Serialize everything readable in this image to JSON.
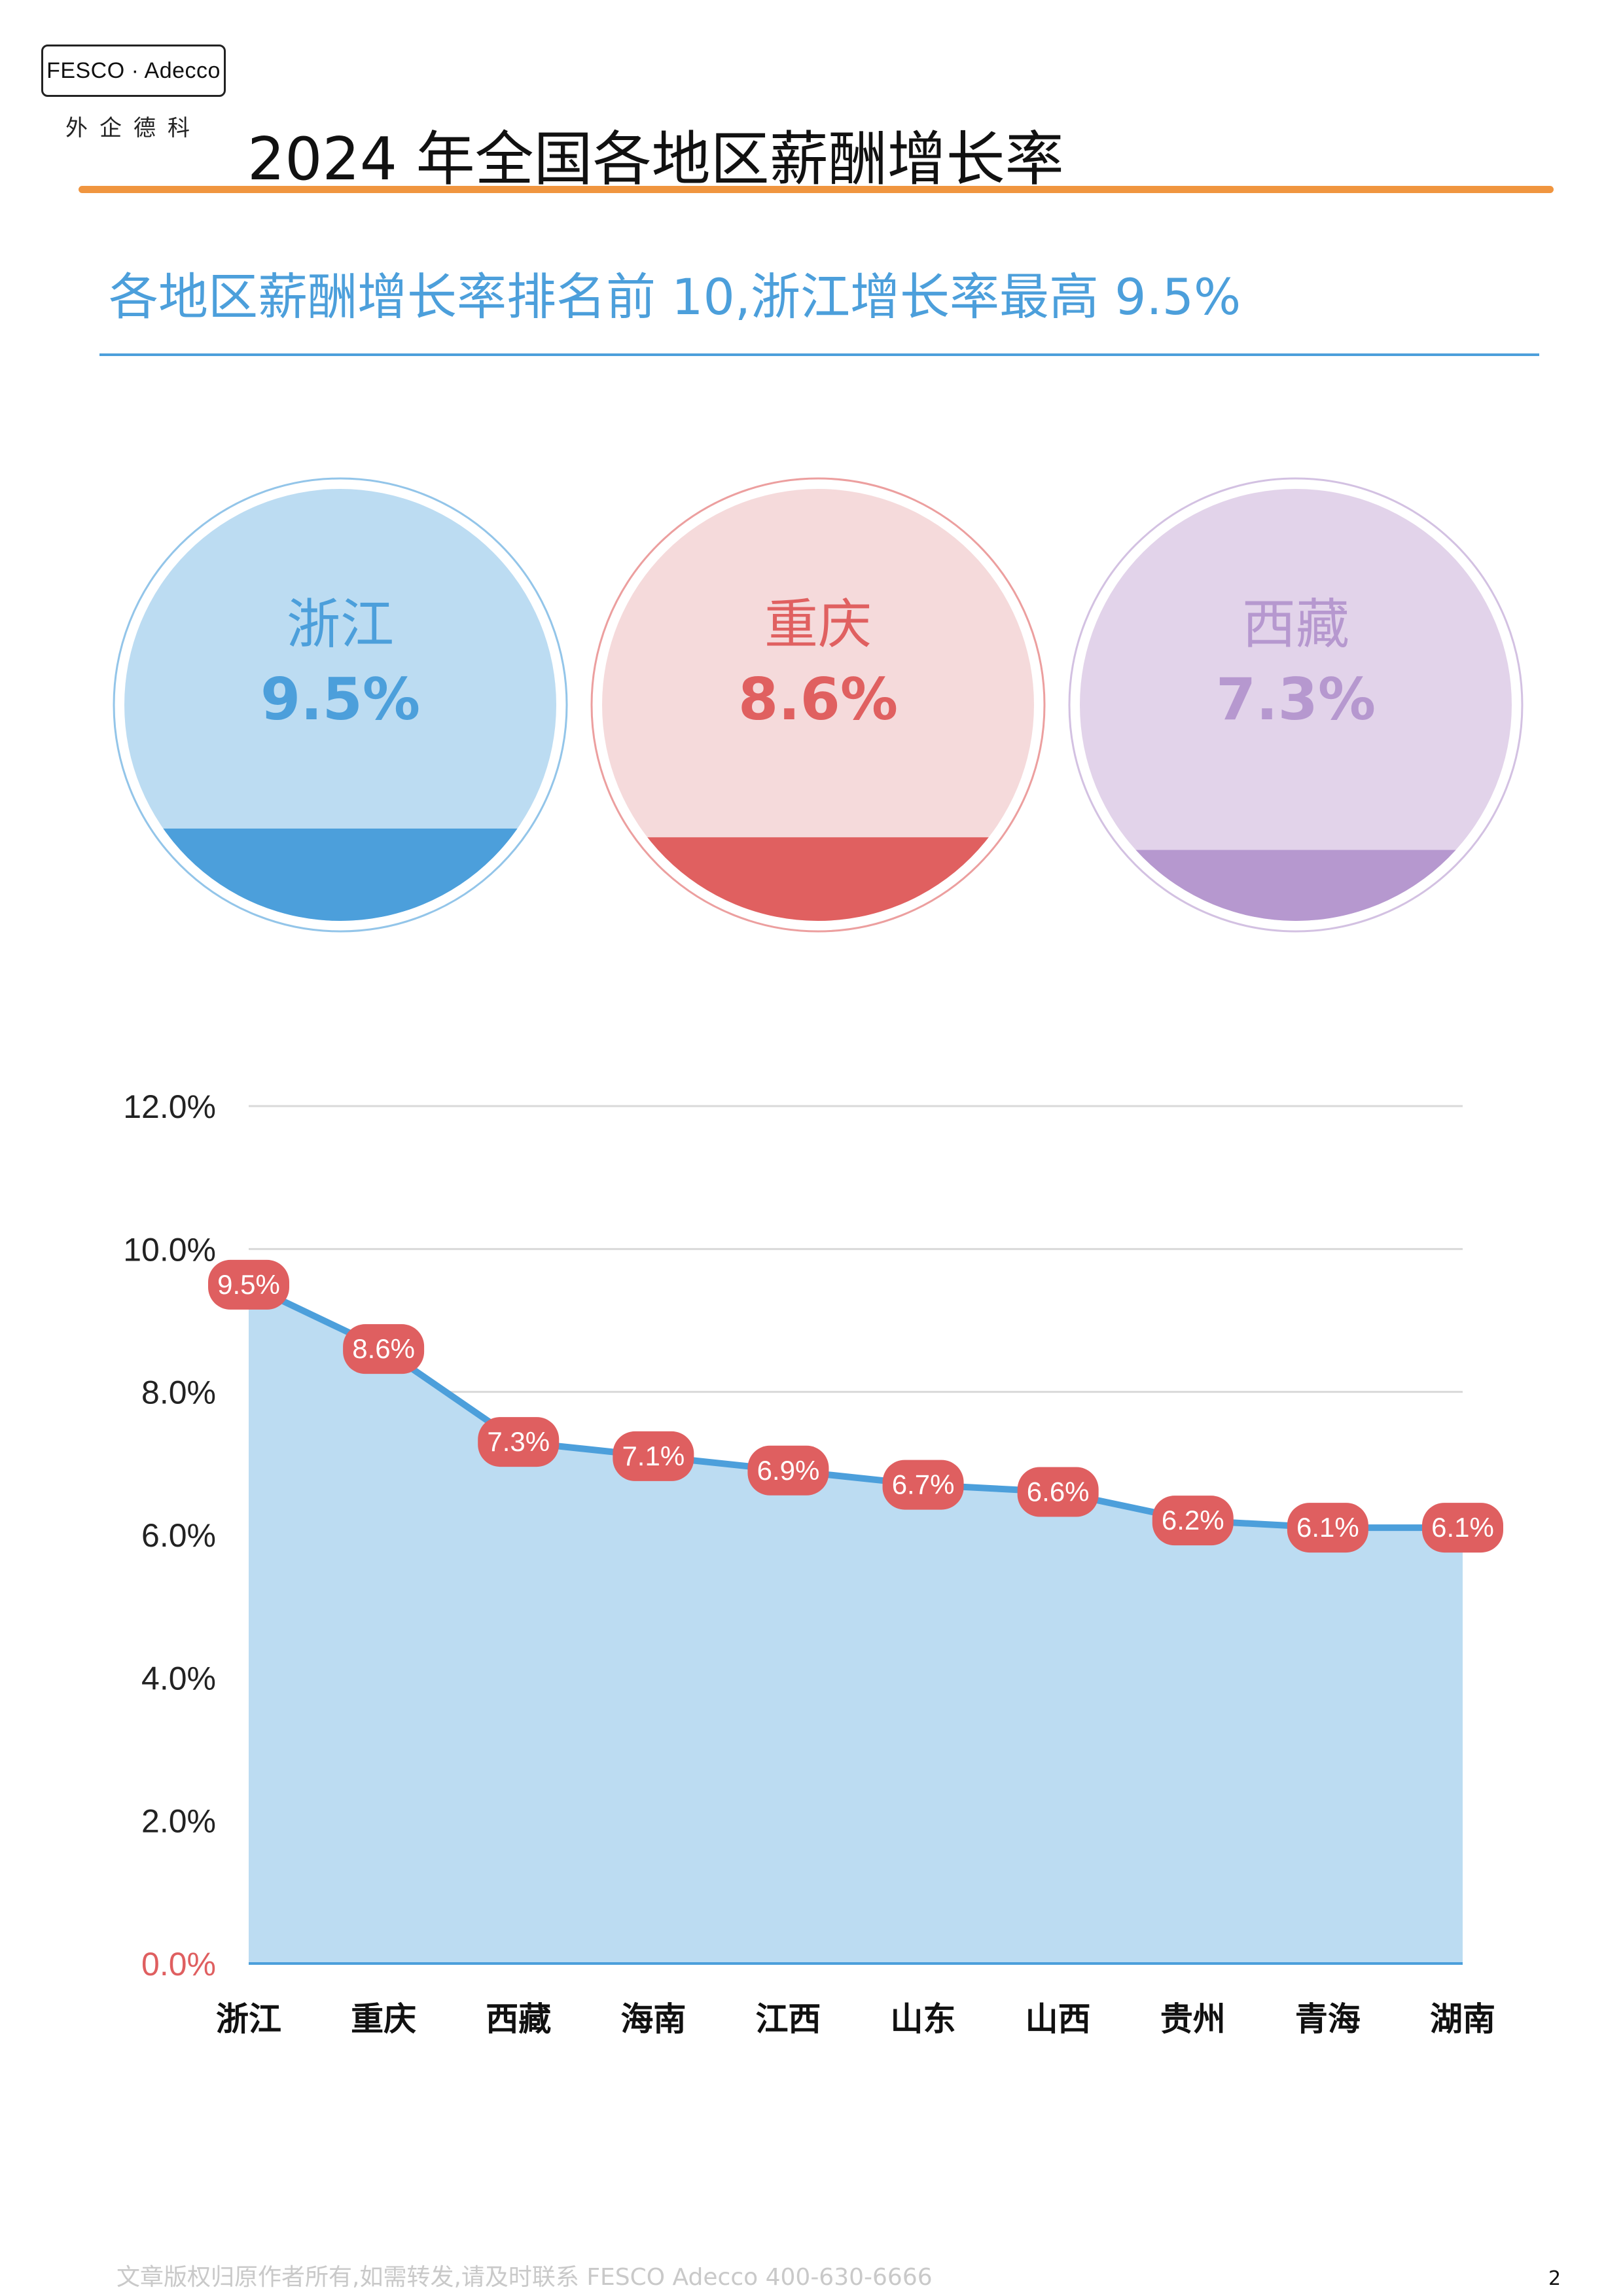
{
  "header": {
    "logo_text": "FESCO · Adecco",
    "logo_subtext": "外企德科",
    "title": "2024 年全国各地区薪酬增长率"
  },
  "subtitle": "各地区薪酬增长率排名前 10,浙江增长率最高 9.5%",
  "highlights": [
    {
      "region": "浙江",
      "value_label": "9.5%",
      "value": 9.5,
      "fill_color": "#bcdcf2",
      "accent_color": "#4c9fdb",
      "text_color": "#4c9fdb"
    },
    {
      "region": "重庆",
      "value_label": "8.6%",
      "value": 8.6,
      "fill_color": "#f5dadb",
      "accent_color": "#e06060",
      "text_color": "#e06060"
    },
    {
      "region": "西藏",
      "value_label": "7.3%",
      "value": 7.3,
      "fill_color": "#e2d3ea",
      "accent_color": "#b698cf",
      "text_color": "#b698cf"
    }
  ],
  "chart_data": {
    "type": "area",
    "categories": [
      "浙江",
      "重庆",
      "西藏",
      "海南",
      "江西",
      "山东",
      "山西",
      "贵州",
      "青海",
      "湖南"
    ],
    "values": [
      9.5,
      8.6,
      7.3,
      7.1,
      6.9,
      6.7,
      6.6,
      6.2,
      6.1,
      6.1
    ],
    "data_labels": [
      "9.5%",
      "8.6%",
      "7.3%",
      "7.1%",
      "6.9%",
      "6.7%",
      "6.6%",
      "6.2%",
      "6.1%",
      "6.1%"
    ],
    "y_ticks": [
      0,
      2,
      4,
      6,
      8,
      10,
      12
    ],
    "y_tick_labels": [
      "0.0%",
      "2.0%",
      "4.0%",
      "6.0%",
      "8.0%",
      "10.0%",
      "12.0%"
    ],
    "ylim": [
      0,
      12
    ],
    "grid": true,
    "colors": {
      "area": "#bcdcf2",
      "line": "#4c9fdb",
      "label_bg": "#df5f60",
      "label_text": "#ffffff",
      "zero_tick": "#df5f60"
    }
  },
  "footer": {
    "copyright": "文章版权归原作者所有,如需转发,请及时联系 FESCO Adecco 400-630-6666",
    "page_number": "2"
  }
}
